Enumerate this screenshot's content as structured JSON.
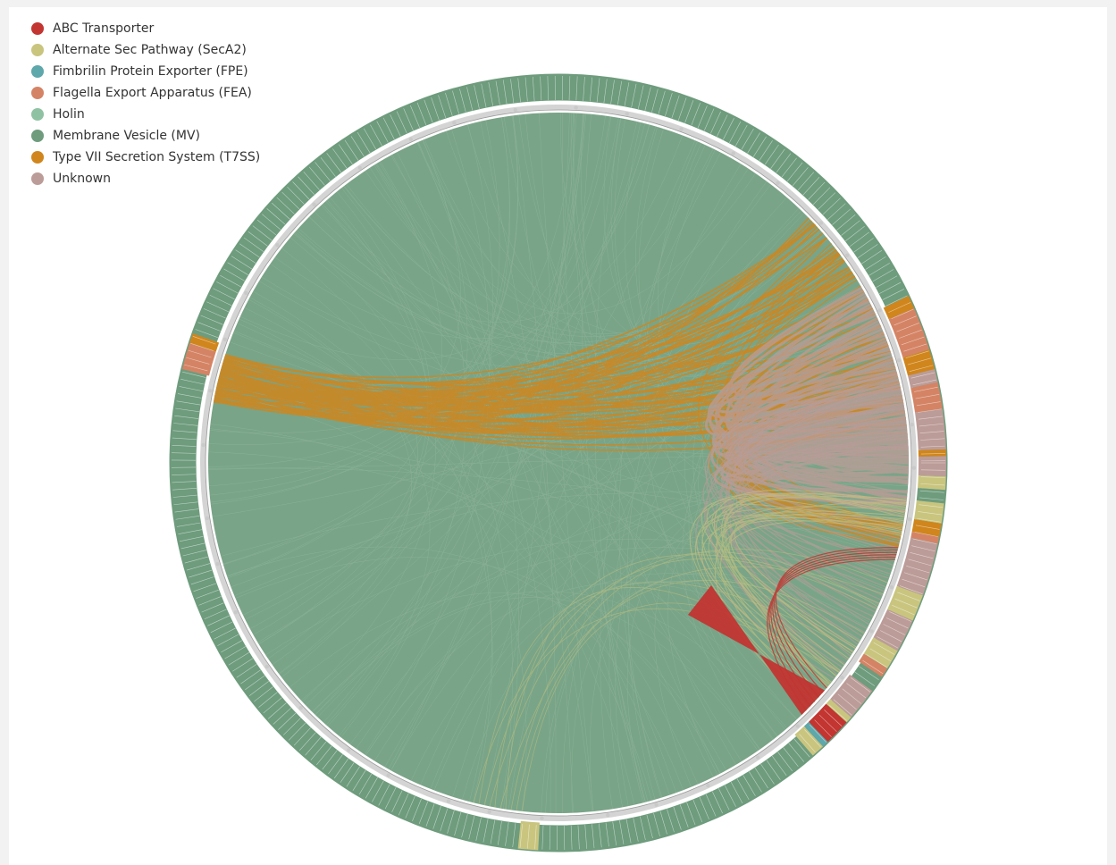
{
  "legend": [
    {
      "label": "ABC Transporter",
      "color": "#c23531"
    },
    {
      "label": "Alternate Sec Pathway (SecA2)",
      "color": "#c9c57f"
    },
    {
      "label": "Fimbrilin Protein Exporter (FPE)",
      "color": "#5ea7ab"
    },
    {
      "label": "Flagella Export Apparatus (FEA)",
      "color": "#d48465"
    },
    {
      "label": "Holin",
      "color": "#8fc2a3"
    },
    {
      "label": "Membrane Vesicle (MV)",
      "color": "#6e9c7d"
    },
    {
      "label": "Type VII Secretion System (T7SS)",
      "color": "#d0861d"
    },
    {
      "label": "Unknown",
      "color": "#bc9c98"
    }
  ]
}
